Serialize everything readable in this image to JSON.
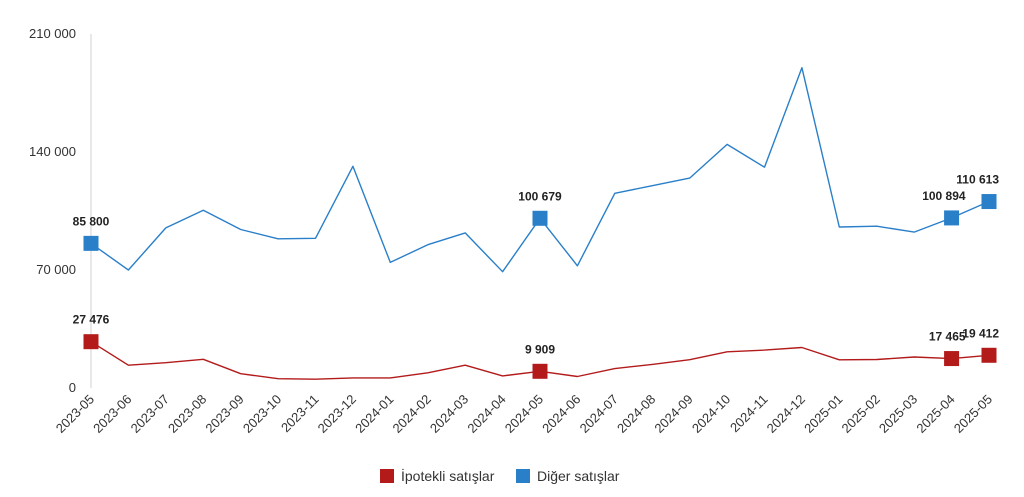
{
  "chart_data": {
    "type": "line",
    "title": "",
    "xlabel": "",
    "ylabel": "",
    "ylim": [
      0,
      210000
    ],
    "yticks": [
      0,
      70000,
      140000,
      210000
    ],
    "ytick_labels": [
      "0",
      "70 000",
      "140 000",
      "210 000"
    ],
    "categories": [
      "2023-05",
      "2023-06",
      "2023-07",
      "2023-08",
      "2023-09",
      "2023-10",
      "2023-11",
      "2023-12",
      "2024-01",
      "2024-02",
      "2024-03",
      "2024-04",
      "2024-05",
      "2024-06",
      "2024-07",
      "2024-08",
      "2024-09",
      "2024-10",
      "2024-11",
      "2024-12",
      "2025-01",
      "2025-02",
      "2025-03",
      "2025-04",
      "2025-05"
    ],
    "grid": false,
    "legend_position": "bottom",
    "series": [
      {
        "name": "İpotekli satışlar",
        "color": "#b31b1b",
        "values": [
          27476,
          13500,
          15000,
          17000,
          8500,
          5500,
          5200,
          6000,
          6000,
          9000,
          13500,
          7200,
          9909,
          6800,
          11500,
          14000,
          16800,
          21500,
          22500,
          24000,
          16700,
          16900,
          18400,
          17465,
          19412
        ],
        "labels": [
          {
            "index": 0,
            "text": "27 476"
          },
          {
            "index": 12,
            "text": "9 909"
          },
          {
            "index": 23,
            "text": "17 465"
          },
          {
            "index": 24,
            "text": "19 412"
          }
        ]
      },
      {
        "name": "Diğer satışlar",
        "color": "#2a7fc9",
        "values": [
          85800,
          70000,
          95000,
          105500,
          94000,
          88500,
          88800,
          131500,
          74500,
          85000,
          92000,
          69000,
          100679,
          72500,
          115500,
          120000,
          124500,
          144500,
          131000,
          190000,
          95500,
          96000,
          92500,
          100894,
          110613
        ],
        "labels": [
          {
            "index": 0,
            "text": "85 800"
          },
          {
            "index": 12,
            "text": "100 679"
          },
          {
            "index": 23,
            "text": "100 894"
          },
          {
            "index": 24,
            "text": "110 613"
          }
        ]
      }
    ]
  }
}
